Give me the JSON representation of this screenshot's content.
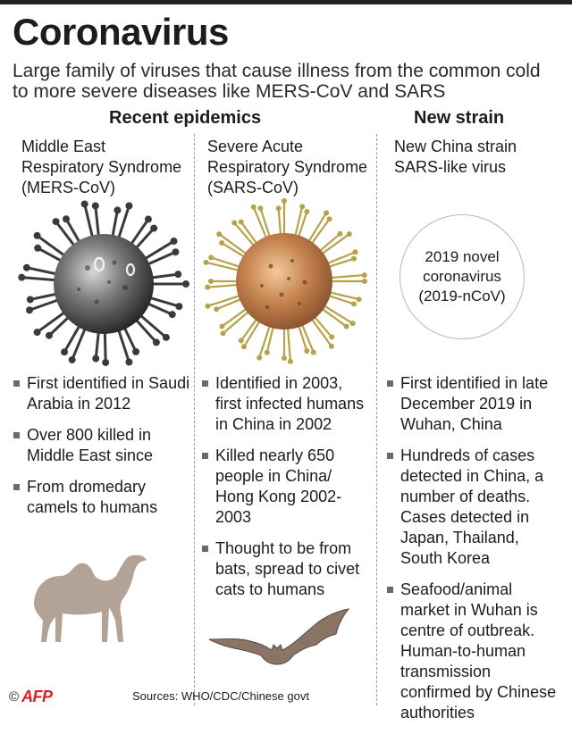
{
  "title": "Coronavirus",
  "subtitle": "Large family of viruses that cause illness from the common cold to more severe diseases like MERS-CoV and SARS",
  "sections": {
    "recent": "Recent epidemics",
    "new": "New strain"
  },
  "columns": [
    {
      "name_lines": [
        "Middle East",
        "Respiratory Syndrome",
        "(MERS-CoV)"
      ],
      "bullets": [
        "First identified in Saudi Arabia in 2012",
        "Over 800 killed in Middle East since",
        "From dromedary camels to humans"
      ],
      "image": "camel-icon"
    },
    {
      "name_lines": [
        "Severe Acute",
        "Respiratory Syndrome",
        "(SARS-CoV)"
      ],
      "bullets": [
        "Identified in 2003, first infected humans in China in 2002",
        "Killed nearly 650 people in China/ Hong Kong 2002-2003",
        "Thought to be from bats, spread to civet cats to humans"
      ],
      "image": "bat-icon"
    },
    {
      "name_lines": [
        "New China strain",
        "SARS-like virus"
      ],
      "circle_lines": [
        "2019 novel",
        "coronavirus",
        "(2019-nCoV)"
      ],
      "bullets": [
        "First identified in late December 2019 in Wuhan, China",
        "Hundreds of cases detected in China, a number of deaths. Cases detected in Japan, Thailand, South Korea",
        "Seafood/animal market in Wuhan is centre of outbreak. Human-to-human transmission confirmed by Chinese authorities"
      ]
    }
  ],
  "footer": {
    "copyright": "©",
    "agency": "AFP",
    "sources": "Sources: WHO/CDC/Chinese govt"
  },
  "colors": {
    "mers_virus": "#3a3a3a",
    "sars_virus": "#b07a4a",
    "sars_spike": "#b5a24a",
    "camel": "#b3a296",
    "bat": "#8a7466",
    "agency": "#d91f26"
  }
}
